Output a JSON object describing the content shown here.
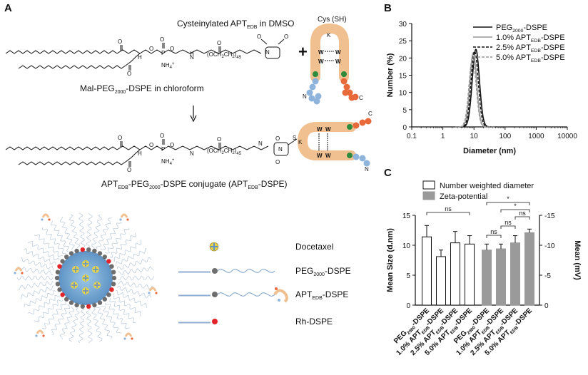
{
  "panel_a": {
    "label": "A",
    "reagent_top": "Cysteinylated APT",
    "reagent_top_sub": "EDB",
    "reagent_top_suffix": " in DMSO",
    "cys_label": "Cys (SH)",
    "lipid_label_pre": "Mal-PEG",
    "lipid_label_sub": "2000",
    "lipid_label_post": "-DSPE in chloroform",
    "conjugate_pre": "APT",
    "conjugate_sub1": "EDB",
    "conjugate_mid": "-PEG",
    "conjugate_sub2": "2000",
    "conjugate_post": "-DSPE conjugate (APT",
    "conjugate_sub3": "EDB",
    "conjugate_end": "-DSPE)",
    "ammonium": "NH",
    "ammonium_sub": "4",
    "ammonium_sup": "+",
    "peg_repeat": "(OCH",
    "peg_repeat_sub": "2",
    "peg_repeat_mid": "CH",
    "peg_repeat_end": ")",
    "peg_n": "45",
    "atom_O": "O",
    "atom_P": "P",
    "atom_H": "H",
    "atom_N": "N",
    "atom_S": "S",
    "atom_K": "K",
    "atom_W": "W",
    "atom_C": "C",
    "legend": [
      {
        "pre": "Docetaxel",
        "sub": "",
        "post": ""
      },
      {
        "pre": "PEG",
        "sub": "2000",
        "post": "-DSPE"
      },
      {
        "pre": "APT",
        "sub": "EDB",
        "post": "-DSPE"
      },
      {
        "pre": "Rh-DSPE",
        "sub": "",
        "post": ""
      }
    ]
  },
  "colors": {
    "peptide_orange": "#f0c090",
    "bead_blue": "#8fb4dc",
    "bead_red": "#e8693a",
    "bead_green": "#2e8b3e",
    "rh_red": "#e0242a",
    "lipid_gray": "#6e6e6e",
    "drug_yellow": "#e8d24a",
    "bar_gray": "#9a9a9a"
  },
  "panel_b": {
    "label": "B",
    "chart_data": {
      "type": "line",
      "xlabel": "Diameter (nm)",
      "ylabel": "Number (%)",
      "xscale": "log",
      "xlim": [
        0.1,
        10000
      ],
      "ylim": [
        0,
        30
      ],
      "xticks": [
        "0.1",
        "1",
        "10",
        "100",
        "1000",
        "10000"
      ],
      "yticks": [
        "0",
        "5",
        "10",
        "15",
        "20",
        "25",
        "30"
      ],
      "legend_position": "top-right",
      "series": [
        {
          "name_pre": "PEG",
          "name_sub": "2000",
          "name_post": "-DSPE",
          "style": "solid-black",
          "center": 11.5,
          "peak": 22.5,
          "sigma": 0.115
        },
        {
          "name_pre": "1.0% APT",
          "name_sub": "EDB",
          "name_post": "-DSPE",
          "style": "solid-gray",
          "center": 9.5,
          "peak": 21.5,
          "sigma": 0.11
        },
        {
          "name_pre": "2.5% APT",
          "name_sub": "EDB",
          "name_post": "-DSPE",
          "style": "dashed-black",
          "center": 10.5,
          "peak": 22.0,
          "sigma": 0.115
        },
        {
          "name_pre": "5.0% APT",
          "name_sub": "EDB",
          "name_post": "-DSPE",
          "style": "dashed-gray",
          "center": 9.0,
          "peak": 20.0,
          "sigma": 0.115
        }
      ]
    }
  },
  "panel_c": {
    "label": "C",
    "chart_data": {
      "type": "bar",
      "legend": [
        "Number weighted diameter",
        "Zeta-potential"
      ],
      "ylabel_left": "Mean Size (d.nm)",
      "ylabel_right": "Mean (mV)",
      "ylim_left": [
        0,
        15
      ],
      "ylim_right": [
        0,
        -15
      ],
      "yticks_left": [
        "0",
        "5",
        "10",
        "15"
      ],
      "yticks_right": [
        "0",
        "-5",
        "-10",
        "-15"
      ],
      "categories": [
        {
          "pre": "PEG",
          "sub": "2000",
          "post": "-DSPE"
        },
        {
          "pre": "1.0% APT",
          "sub": "EDB",
          "post": "-DSPE"
        },
        {
          "pre": "2.5% APT",
          "sub": "EDB",
          "post": "-DSPE"
        },
        {
          "pre": "5.0% APT",
          "sub": "EDB",
          "post": "-DSPE"
        }
      ],
      "series": [
        {
          "name": "Number weighted diameter",
          "axis": "left",
          "values": [
            11.4,
            8.1,
            10.4,
            10.2
          ],
          "errors": [
            1.9,
            1.1,
            1.9,
            1.4
          ]
        },
        {
          "name": "Zeta-potential",
          "axis": "right",
          "values": [
            -9.2,
            -9.4,
            -10.4,
            -12.1
          ],
          "errors": [
            1.0,
            0.8,
            1.2,
            0.6
          ]
        }
      ],
      "annotations": [
        "ns",
        "ns",
        "ns",
        "ns",
        "*",
        "*"
      ]
    }
  }
}
